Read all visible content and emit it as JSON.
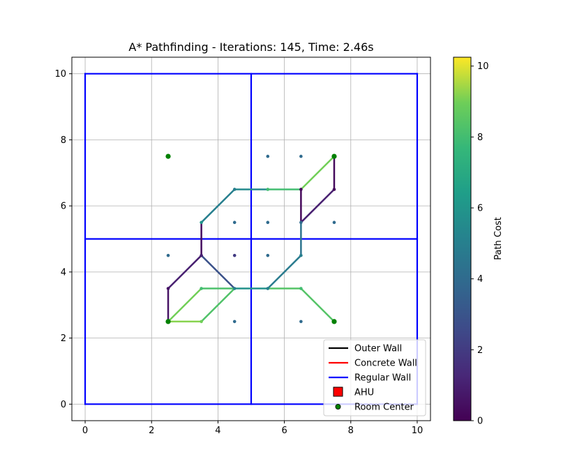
{
  "chart_data": {
    "type": "line",
    "title": "A* Pathfinding - Iterations: 145, Time: 2.46s",
    "xlabel": "",
    "ylabel": "",
    "xlim": [
      -0.4,
      10.4
    ],
    "ylim": [
      -0.5,
      10.5
    ],
    "x_ticks": [
      0,
      2,
      4,
      6,
      8,
      10
    ],
    "y_ticks": [
      0,
      2,
      4,
      6,
      8,
      10
    ],
    "grid": true,
    "walls": [
      {
        "type": "Regular Wall",
        "x": [
          0,
          10
        ],
        "y": [
          0,
          0
        ]
      },
      {
        "type": "Regular Wall",
        "x": [
          10,
          10
        ],
        "y": [
          0,
          10
        ]
      },
      {
        "type": "Regular Wall",
        "x": [
          10,
          0
        ],
        "y": [
          10,
          10
        ]
      },
      {
        "type": "Regular Wall",
        "x": [
          0,
          0
        ],
        "y": [
          10,
          0
        ]
      },
      {
        "type": "Regular Wall",
        "x": [
          5,
          5
        ],
        "y": [
          0,
          10
        ]
      },
      {
        "type": "Regular Wall",
        "x": [
          0,
          10
        ],
        "y": [
          5,
          5
        ]
      }
    ],
    "path_segments": [
      {
        "x": [
          7.5,
          7.5
        ],
        "y": [
          7.5,
          6.5
        ],
        "cost": 0.3
      },
      {
        "x": [
          7.5,
          6.5
        ],
        "y": [
          6.5,
          5.5
        ],
        "cost": 1.0
      },
      {
        "x": [
          6.5,
          6.5
        ],
        "y": [
          6.5,
          5.5
        ],
        "cost": 0.2
      },
      {
        "x": [
          6.5,
          6.5
        ],
        "y": [
          5.5,
          4.5
        ],
        "cost": 4.4
      },
      {
        "x": [
          6.5,
          5.5
        ],
        "y": [
          4.5,
          3.5
        ],
        "cost": 4.8
      },
      {
        "x": [
          5.5,
          4.5
        ],
        "y": [
          3.5,
          3.5
        ],
        "cost": 5.8
      },
      {
        "x": [
          6.5,
          7.5
        ],
        "y": [
          3.5,
          2.5
        ],
        "cost": 8.4
      },
      {
        "x": [
          5.5,
          6.5
        ],
        "y": [
          3.5,
          3.5
        ],
        "cost": 8.4
      },
      {
        "x": [
          4.5,
          3.5
        ],
        "y": [
          3.5,
          4.5
        ],
        "cost": 2.9
      },
      {
        "x": [
          4.5,
          3.5
        ],
        "y": [
          3.5,
          3.5
        ],
        "cost": 8.2
      },
      {
        "x": [
          4.5,
          3.5
        ],
        "y": [
          3.5,
          2.5
        ],
        "cost": 8.3
      },
      {
        "x": [
          3.5,
          2.5
        ],
        "y": [
          2.5,
          2.5
        ],
        "cost": 9.2
      },
      {
        "x": [
          2.5,
          3.5
        ],
        "y": [
          2.5,
          3.5
        ],
        "cost": 9.0
      },
      {
        "x": [
          2.5,
          2.5
        ],
        "y": [
          2.5,
          3.5
        ],
        "cost": 0.6
      },
      {
        "x": [
          2.5,
          3.5
        ],
        "y": [
          3.5,
          4.5
        ],
        "cost": 1.0
      },
      {
        "x": [
          3.5,
          3.5
        ],
        "y": [
          4.5,
          5.5
        ],
        "cost": 0.4
      },
      {
        "x": [
          3.5,
          4.5
        ],
        "y": [
          5.5,
          6.5
        ],
        "cost": 5.0
      },
      {
        "x": [
          4.5,
          5.5
        ],
        "y": [
          6.5,
          6.5
        ],
        "cost": 5.5
      },
      {
        "x": [
          5.5,
          6.5
        ],
        "y": [
          6.5,
          6.5
        ],
        "cost": 8.0
      },
      {
        "x": [
          6.5,
          7.5
        ],
        "y": [
          6.5,
          7.5
        ],
        "cost": 9.0
      }
    ],
    "nodes": {
      "x": [
        5.5,
        6.5,
        7.5,
        4.5,
        5.5,
        6.5,
        7.5,
        3.5,
        4.5,
        5.5,
        6.5,
        7.5,
        2.5,
        3.5,
        4.5,
        5.5,
        6.5,
        2.5,
        3.5,
        4.5,
        5.5,
        6.5,
        2.5,
        3.5,
        4.5,
        6.5,
        7.5
      ],
      "y": [
        7.5,
        7.5,
        7.5,
        6.5,
        6.5,
        6.5,
        6.5,
        5.5,
        5.5,
        5.5,
        5.5,
        5.5,
        4.5,
        4.5,
        4.5,
        4.5,
        4.5,
        3.5,
        3.5,
        3.5,
        3.5,
        3.5,
        2.5,
        2.5,
        2.5,
        2.5,
        2.5
      ],
      "cost": [
        4.0,
        4.0,
        9.0,
        5.0,
        8.0,
        0.2,
        0.3,
        6.0,
        4.0,
        4.0,
        4.0,
        4.0,
        4.0,
        1.0,
        2.0,
        4.0,
        5.0,
        0.6,
        8.0,
        5.0,
        5.0,
        8.0,
        9.0,
        9.0,
        4.0,
        4.0,
        8.0
      ]
    },
    "room_centers": {
      "x": [
        2.5,
        7.5,
        2.5,
        7.5
      ],
      "y": [
        7.5,
        7.5,
        2.5,
        2.5
      ]
    },
    "colorbar": {
      "label": "Path Cost",
      "range": [
        0,
        10.25
      ],
      "ticks": [
        0,
        2,
        4,
        6,
        8,
        10
      ],
      "colormap": "viridis"
    },
    "legend": {
      "placement": "lower right",
      "entries": [
        {
          "label": "Outer Wall",
          "kind": "line",
          "color": "#000000"
        },
        {
          "label": "Concrete Wall",
          "kind": "line",
          "color": "#ff0000"
        },
        {
          "label": "Regular Wall",
          "kind": "line",
          "color": "#0000ff"
        },
        {
          "label": "AHU",
          "kind": "square",
          "color": "#ff0000"
        },
        {
          "label": "Room Center",
          "kind": "circle",
          "color": "#008000"
        }
      ]
    },
    "colors": {
      "regular_wall": "#0000ff",
      "room_center": "#008000",
      "grid": "#b0b0b0"
    }
  }
}
